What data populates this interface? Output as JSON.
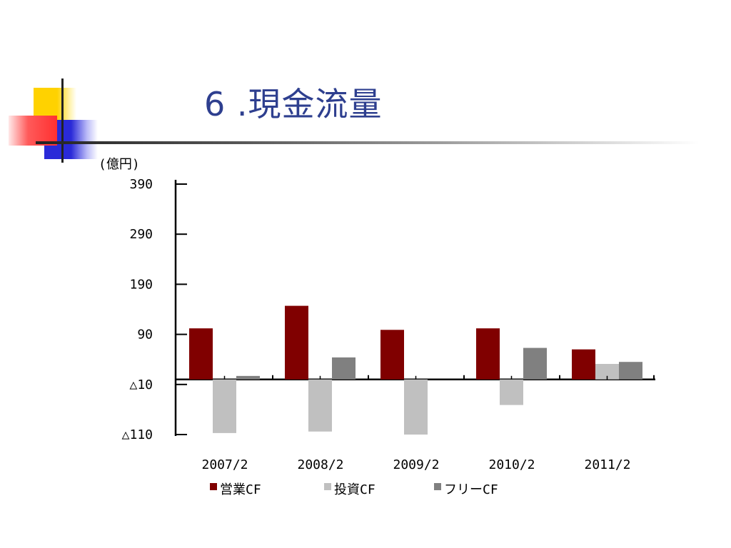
{
  "slide": {
    "title": "6 .現金流量"
  },
  "chart_data": {
    "type": "bar",
    "unit_label": "(億円)",
    "categories": [
      "2007/2",
      "2008/2",
      "2009/2",
      "2010/2",
      "2011/2"
    ],
    "series": [
      {
        "name": "営業CF",
        "color": "#800000",
        "values": [
          102,
          147,
          99,
          102,
          60
        ]
      },
      {
        "name": "投資CF",
        "color": "#c0c0c0",
        "values": [
          -107,
          -104,
          -110,
          -51,
          31
        ]
      },
      {
        "name": "フリーCF",
        "color": "#808080",
        "values": [
          7,
          44,
          0,
          63,
          35
        ]
      }
    ],
    "y_ticks": [
      {
        "value": 390,
        "label": "390"
      },
      {
        "value": 290,
        "label": "290"
      },
      {
        "value": 190,
        "label": "190"
      },
      {
        "value": 90,
        "label": "90"
      },
      {
        "value": -10,
        "label": "△10"
      },
      {
        "value": -110,
        "label": "△110"
      }
    ],
    "ylim": [
      -110,
      390
    ],
    "grid": false,
    "legend_position": "bottom"
  }
}
